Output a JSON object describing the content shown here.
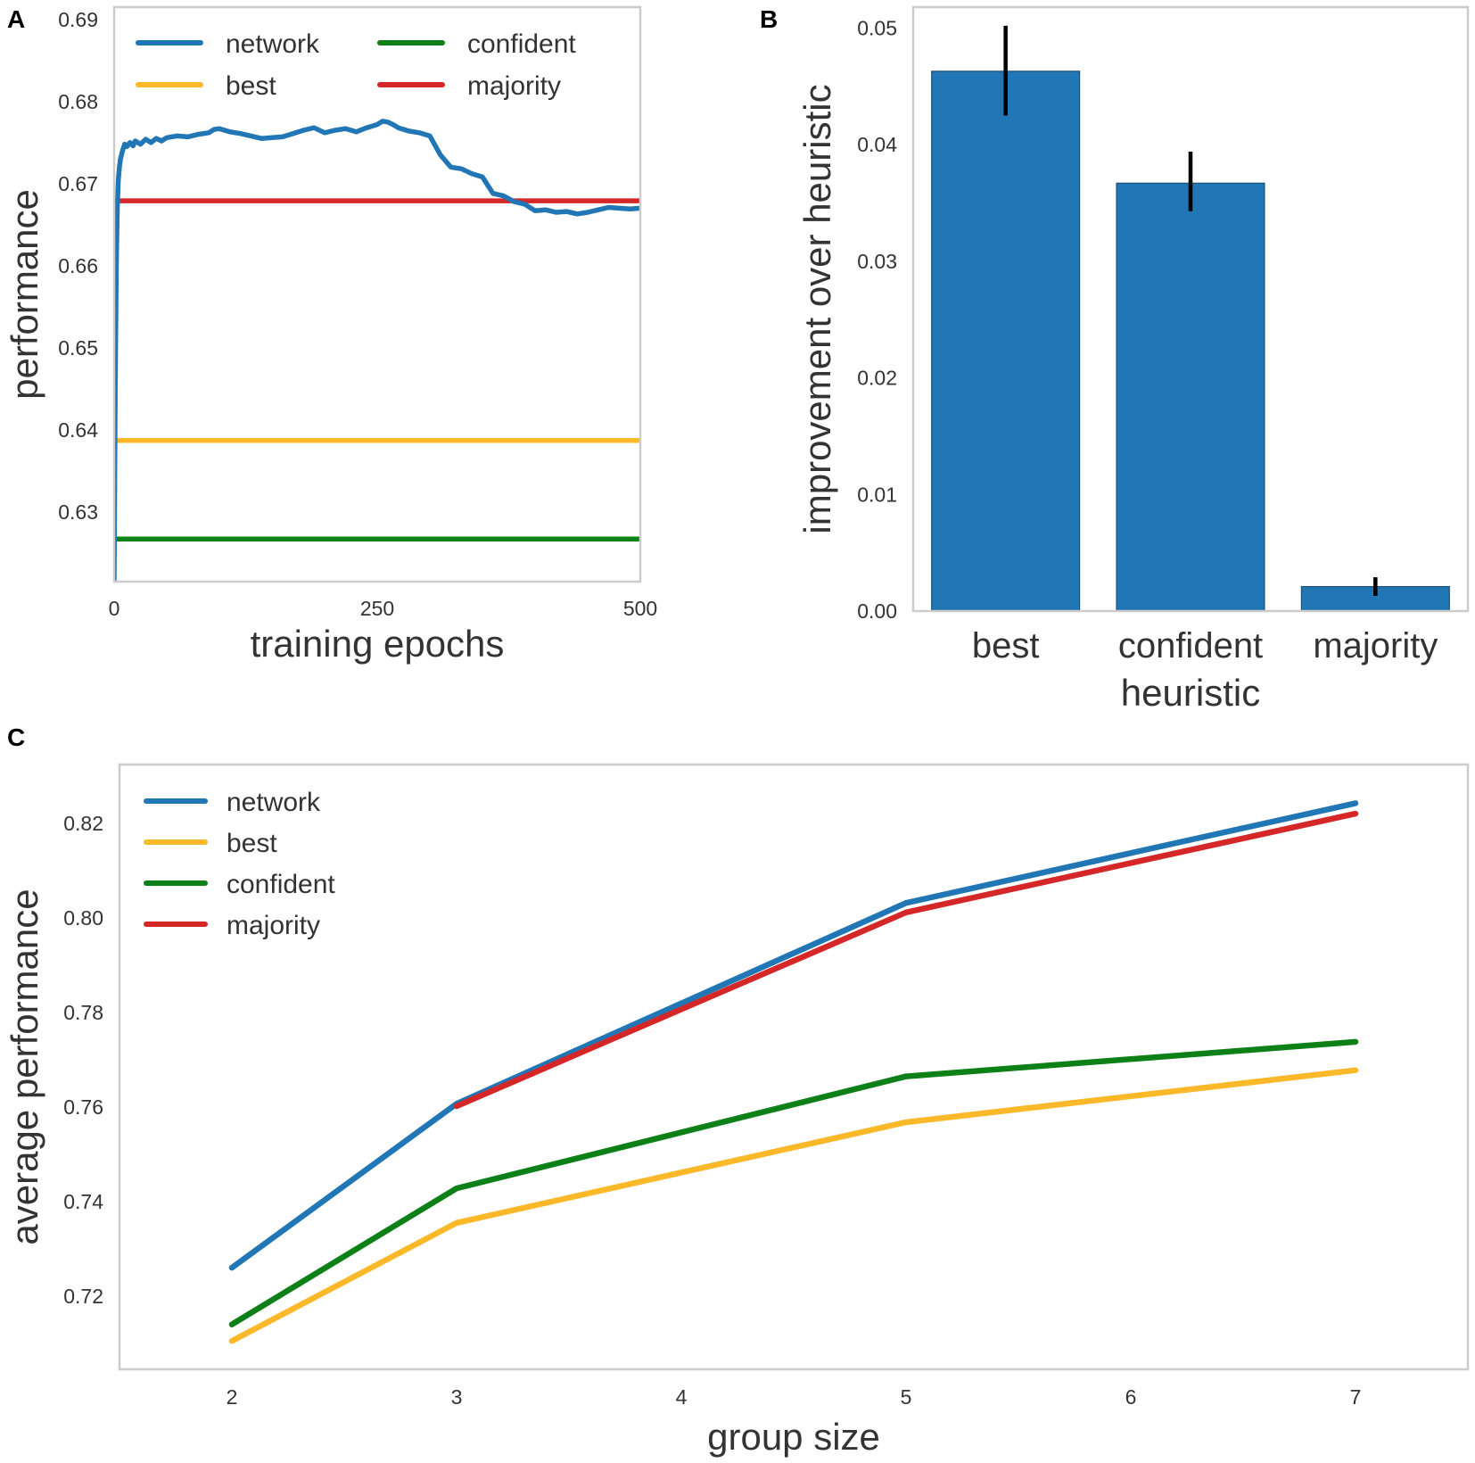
{
  "chart_data": [
    {
      "panel": "A",
      "type": "line",
      "xlabel": "training epochs",
      "ylabel": "performance",
      "xlim": [
        0,
        500
      ],
      "ylim": [
        0.6215,
        0.6915
      ],
      "xticks": [
        0,
        250,
        500
      ],
      "yticks": [
        0.63,
        0.64,
        0.65,
        0.66,
        0.67,
        0.68,
        0.69
      ],
      "legend_loc": "top-left, two columns",
      "series": [
        {
          "name": "network",
          "color": "#2176b5",
          "x": [
            0,
            1,
            2,
            3,
            4,
            5,
            6,
            8,
            10,
            12,
            15,
            18,
            20,
            25,
            30,
            35,
            40,
            45,
            50,
            60,
            70,
            80,
            90,
            95,
            100,
            110,
            120,
            130,
            140,
            150,
            160,
            170,
            180,
            190,
            200,
            210,
            220,
            230,
            240,
            250,
            255,
            260,
            265,
            270,
            280,
            290,
            300,
            310,
            320,
            330,
            340,
            350,
            355,
            360,
            370,
            380,
            390,
            400,
            410,
            420,
            430,
            440,
            450,
            460,
            470,
            480,
            490,
            500
          ],
          "y": [
            0.6215,
            0.645,
            0.66,
            0.667,
            0.6705,
            0.672,
            0.673,
            0.674,
            0.6748,
            0.6745,
            0.675,
            0.6746,
            0.6752,
            0.6748,
            0.6754,
            0.675,
            0.6755,
            0.6752,
            0.6756,
            0.6758,
            0.6757,
            0.676,
            0.6762,
            0.6766,
            0.6767,
            0.6763,
            0.6761,
            0.6758,
            0.6755,
            0.6756,
            0.6757,
            0.6761,
            0.6765,
            0.6768,
            0.6762,
            0.6765,
            0.6767,
            0.6763,
            0.6768,
            0.6772,
            0.6776,
            0.6775,
            0.6772,
            0.6768,
            0.6764,
            0.6762,
            0.6758,
            0.6735,
            0.672,
            0.6718,
            0.6712,
            0.6708,
            0.6698,
            0.6688,
            0.6685,
            0.6678,
            0.6675,
            0.6667,
            0.6668,
            0.6665,
            0.6666,
            0.6663,
            0.6665,
            0.6668,
            0.6671,
            0.667,
            0.6669,
            0.667
          ]
        },
        {
          "name": "best",
          "color": "#fbb829",
          "x": [
            0,
            500
          ],
          "y": [
            0.6387,
            0.6387
          ]
        },
        {
          "name": "confident",
          "color": "#0d8017",
          "x": [
            0,
            500
          ],
          "y": [
            0.6267,
            0.6267
          ]
        },
        {
          "name": "majority",
          "color": "#d62728",
          "x": [
            0,
            500
          ],
          "y": [
            0.6679,
            0.6679
          ]
        }
      ]
    },
    {
      "panel": "B",
      "type": "bar",
      "xlabel": "heuristic",
      "ylabel": "improvement over heuristic",
      "ylim": [
        0,
        0.0518
      ],
      "yticks": [
        "0.00",
        "0.01",
        "0.02",
        "0.03",
        "0.04",
        "0.05"
      ],
      "categories": [
        "best",
        "confident",
        "majority"
      ],
      "values": [
        0.0463,
        0.0367,
        0.0021
      ],
      "error": [
        [
          0.0425,
          0.0502
        ],
        [
          0.0343,
          0.0394
        ],
        [
          0.0013,
          0.0029
        ]
      ],
      "bar_color": "#2176b5"
    },
    {
      "panel": "C",
      "type": "line",
      "xlabel": "group size",
      "ylabel": "average performance",
      "xlim": [
        1.5,
        7.5
      ],
      "ylim": [
        0.7045,
        0.8325
      ],
      "xticks": [
        2,
        3,
        4,
        5,
        6,
        7
      ],
      "yticks": [
        0.72,
        0.74,
        0.76,
        0.78,
        0.8,
        0.82
      ],
      "legend_loc": "top-left",
      "series": [
        {
          "name": "network",
          "color": "#2176b5",
          "x": [
            2,
            3,
            5,
            7
          ],
          "y": [
            0.726,
            0.7607,
            0.8032,
            0.8243
          ]
        },
        {
          "name": "best",
          "color": "#fbb829",
          "x": [
            2,
            3,
            5,
            7
          ],
          "y": [
            0.7105,
            0.7355,
            0.7568,
            0.7678
          ]
        },
        {
          "name": "confident",
          "color": "#0d8017",
          "x": [
            2,
            3,
            5,
            7
          ],
          "y": [
            0.714,
            0.7428,
            0.7665,
            0.7738
          ]
        },
        {
          "name": "majority",
          "color": "#d62728",
          "x": [
            3,
            5,
            7
          ],
          "y": [
            0.7602,
            0.8012,
            0.8221
          ]
        }
      ]
    }
  ]
}
